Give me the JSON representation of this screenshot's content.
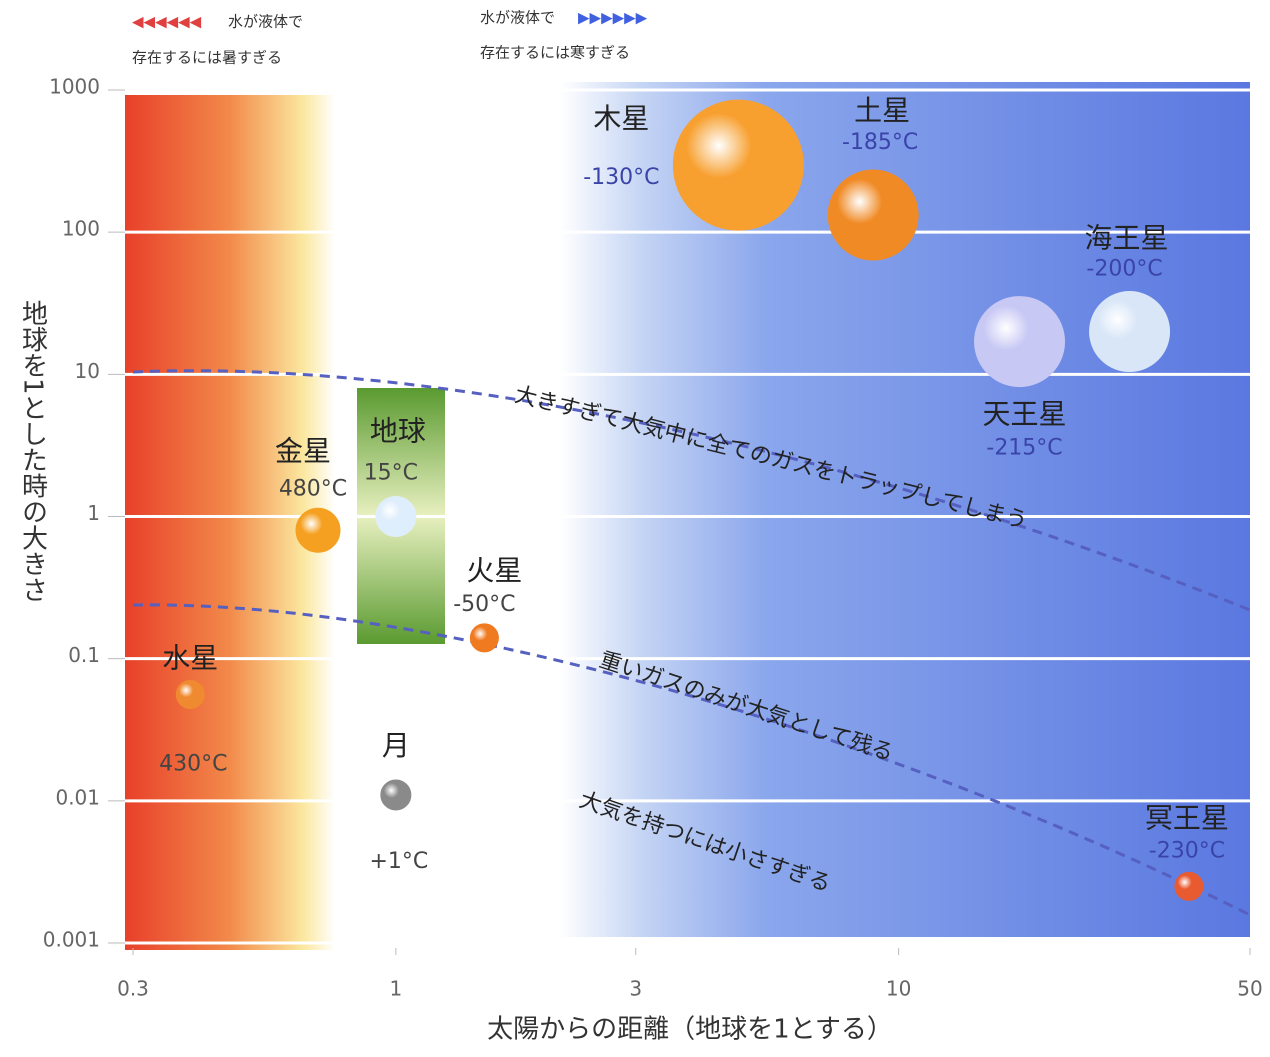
{
  "chart_data": {
    "type": "scatter",
    "notes": [
      {
        "arrow": "◀◀◀◀◀◀",
        "line1": "水が液体で",
        "line2": "存在するには暑すぎる"
      },
      {
        "arrow": "▶▶▶▶▶▶",
        "line1": "水が液体で",
        "line2": "存在するには寒すぎる"
      }
    ],
    "x_label": "太陽からの距離（地球を1とする）",
    "y_label": "地球を1とした時の大きさ",
    "log_x": true,
    "log_y": true,
    "grid": true,
    "xlim": [
      0.3,
      50
    ],
    "xticks": [
      0.3,
      1,
      3,
      10,
      50
    ],
    "ylim": [
      0.001,
      1000
    ],
    "yticks": [
      0.001,
      0.01,
      0.1,
      1,
      10,
      100,
      1000
    ],
    "annotations": [
      "大きすぎて大気中に全てのガスをトラップしてしまう",
      "重いガスのみが大気として残る",
      "大気を持つには小さすぎる"
    ],
    "points": [
      {
        "label": "水星",
        "temperature": "430°C",
        "x": 0.39,
        "y": 0.056,
        "color": "#f08a30"
      },
      {
        "label": "金星",
        "temperature": "480°C",
        "x": 0.7,
        "y": 0.8,
        "color": "#f5a020"
      },
      {
        "label": "地球",
        "temperature": "15°C",
        "x": 1,
        "y": 1,
        "color": "#dfeefc"
      },
      {
        "label": "月",
        "temperature": "+1°C",
        "x": 1,
        "y": 0.011,
        "color": "#8a8a8a"
      },
      {
        "label": "火星",
        "temperature": "-50°C",
        "x": 1.5,
        "y": 0.14,
        "color": "#f07a20"
      },
      {
        "label": "木星",
        "temperature": "-130°C",
        "x": 4.8,
        "y": 296,
        "color": "#f7a030"
      },
      {
        "label": "土星",
        "temperature": "-185°C",
        "x": 8.9,
        "y": 132,
        "color": "#f08a25"
      },
      {
        "label": "天王星",
        "temperature": "-215°C",
        "x": 17.4,
        "y": 17,
        "color": "#c8c8f5"
      },
      {
        "label": "海王星",
        "temperature": "-200°C",
        "x": 28.8,
        "y": 20,
        "color": "#d8e6f8"
      },
      {
        "label": "冥王星",
        "temperature": "-230°C",
        "x": 37.8,
        "y": 0.0025,
        "color": "#e85a30"
      }
    ]
  }
}
